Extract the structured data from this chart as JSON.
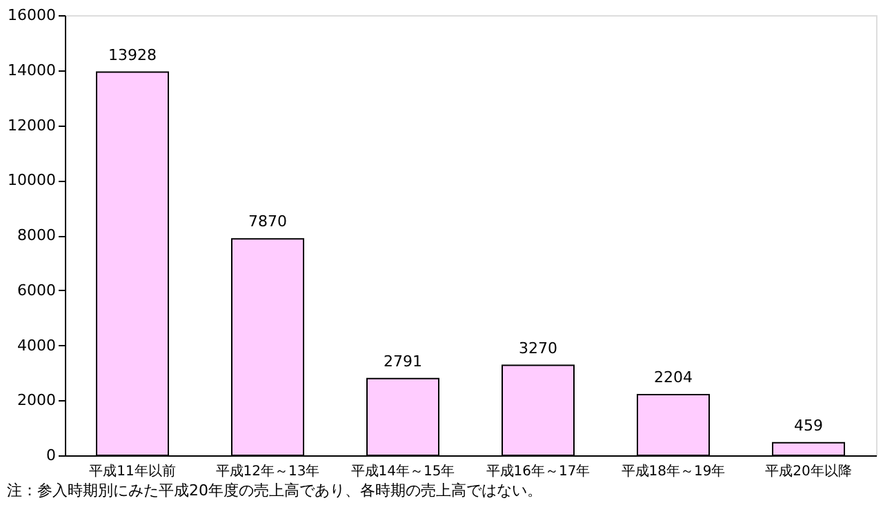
{
  "chart_data": {
    "type": "bar",
    "categories": [
      "平成11年以前",
      "平成12年～13年",
      "平成14年～15年",
      "平成16年～17年",
      "平成18年～19年",
      "平成20年以降"
    ],
    "values": [
      13928,
      7870,
      2791,
      3270,
      2204,
      459
    ],
    "color": "#ffccff",
    "ylim": [
      0,
      16000
    ],
    "yticks": [
      0,
      2000,
      4000,
      6000,
      8000,
      10000,
      12000,
      14000,
      16000
    ],
    "grid": false,
    "data_labels": true,
    "annotations": [
      "注：参入時期別にみた平成20年度の売上高であり、各時期の売上高ではない。"
    ]
  }
}
